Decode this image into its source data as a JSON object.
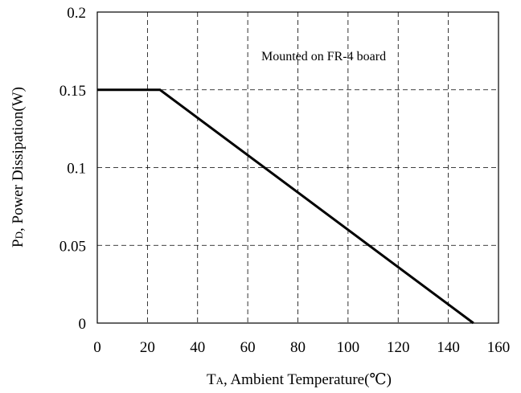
{
  "chart_data": {
    "type": "line",
    "x_label_main": "T",
    "x_label_sub": "A",
    "x_label_rest": ", Ambient Temperature(℃)",
    "y_label_main": "P",
    "y_label_sub": "D",
    "y_label_rest": ", Power Dissipation(W)",
    "xlim": [
      0,
      160
    ],
    "ylim": [
      0,
      0.2
    ],
    "x_ticks": [
      0,
      20,
      40,
      60,
      80,
      100,
      120,
      140,
      160
    ],
    "x_tick_labels": [
      "0",
      "20",
      "40",
      "60",
      "80",
      "100",
      "120",
      "140",
      "160"
    ],
    "y_ticks": [
      0,
      0.05,
      0.1,
      0.15,
      0.2
    ],
    "y_tick_labels": [
      "0",
      "0.05",
      "0.1",
      "0.15",
      "0.2"
    ],
    "grid": true,
    "annotation": "Mounted on FR-4 board",
    "series": [
      {
        "x": [
          0,
          25,
          150
        ],
        "y": [
          0.15,
          0.15,
          0
        ]
      }
    ]
  }
}
